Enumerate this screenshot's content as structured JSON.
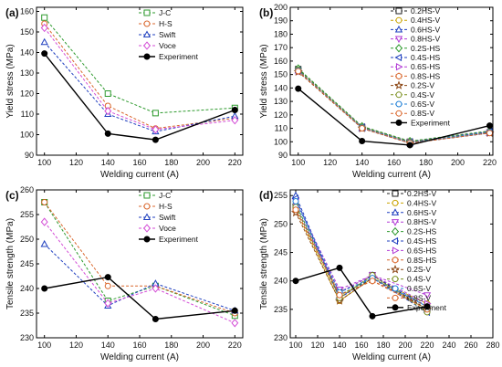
{
  "chart_data": [
    {
      "panel": "(a)",
      "type": "line",
      "xlabel": "Welding current (A)",
      "ylabel": "Yield stress (MPa)",
      "xlim": [
        95,
        225
      ],
      "ylim": [
        90,
        162
      ],
      "xticks": [
        100,
        120,
        140,
        160,
        180,
        200,
        220
      ],
      "yticks": [
        90,
        100,
        110,
        120,
        130,
        140,
        150,
        160
      ],
      "legend_position": "top-right",
      "series": [
        {
          "name": "J-C",
          "color": "#2e9a2e",
          "marker": "square",
          "dashed": true,
          "x": [
            100,
            140,
            170,
            220
          ],
          "values": [
            157,
            120,
            110.5,
            113
          ]
        },
        {
          "name": "H-S",
          "color": "#d9662b",
          "marker": "circle",
          "dashed": true,
          "x": [
            100,
            140,
            170,
            220
          ],
          "values": [
            154,
            114,
            103,
            108
          ]
        },
        {
          "name": "Swift",
          "color": "#1f3fbf",
          "marker": "triangle",
          "dashed": true,
          "x": [
            100,
            140,
            170,
            220
          ],
          "values": [
            145,
            110,
            101.5,
            109
          ]
        },
        {
          "name": "Voce",
          "color": "#d34bd6",
          "marker": "diamond",
          "dashed": true,
          "x": [
            100,
            140,
            170,
            220
          ],
          "values": [
            152,
            111.5,
            102.5,
            107
          ]
        },
        {
          "name": "Experiment",
          "color": "#000000",
          "marker": "filled-circle",
          "dashed": false,
          "x": [
            100,
            140,
            170,
            220
          ],
          "values": [
            139.5,
            100.5,
            97.5,
            112
          ]
        }
      ]
    },
    {
      "panel": "(b)",
      "type": "line",
      "xlabel": "Welding current (A)",
      "ylabel": "Yield stress (MPa)",
      "xlim": [
        95,
        222
      ],
      "ylim": [
        90,
        200
      ],
      "xticks": [
        100,
        120,
        140,
        160,
        180,
        200,
        220
      ],
      "yticks": [
        90,
        100,
        110,
        120,
        130,
        140,
        150,
        160,
        170,
        180,
        190,
        200
      ],
      "legend_position": "top-right",
      "series": [
        {
          "name": "0.2HS-V",
          "color": "#222222",
          "marker": "square",
          "dashed": true,
          "x": [
            100,
            140,
            170,
            220
          ],
          "values": [
            154,
            111,
            100,
            107
          ]
        },
        {
          "name": "0.4HS-V",
          "color": "#c9a200",
          "marker": "circle",
          "dashed": true,
          "x": [
            100,
            140,
            170,
            220
          ],
          "values": [
            153.5,
            110.5,
            99.5,
            107.5
          ]
        },
        {
          "name": "0.6HS-V",
          "color": "#1f3fbf",
          "marker": "triangle",
          "dashed": true,
          "x": [
            100,
            140,
            170,
            220
          ],
          "values": [
            153,
            110,
            99,
            106.5
          ]
        },
        {
          "name": "0.8HS-V",
          "color": "#b23bd6",
          "marker": "triangle-down",
          "dashed": true,
          "x": [
            100,
            140,
            170,
            220
          ],
          "values": [
            152.5,
            110.5,
            99.5,
            107
          ]
        },
        {
          "name": "0.2S-HS",
          "color": "#2e9a2e",
          "marker": "diamond",
          "dashed": true,
          "x": [
            100,
            140,
            170,
            220
          ],
          "values": [
            154.5,
            111.5,
            100.5,
            108
          ]
        },
        {
          "name": "0.4S-HS",
          "color": "#1f3fbf",
          "marker": "triangle-left",
          "dashed": true,
          "x": [
            100,
            140,
            170,
            220
          ],
          "values": [
            153,
            111,
            100,
            107.5
          ]
        },
        {
          "name": "0.6S-HS",
          "color": "#b23bd6",
          "marker": "triangle-right",
          "dashed": true,
          "x": [
            100,
            140,
            170,
            220
          ],
          "values": [
            152.5,
            110,
            99.5,
            106.5
          ]
        },
        {
          "name": "0.8S-HS",
          "color": "#d9662b",
          "marker": "hexagon",
          "dashed": true,
          "x": [
            100,
            140,
            170,
            220
          ],
          "values": [
            153,
            110.5,
            99.5,
            107
          ]
        },
        {
          "name": "0.2S-V",
          "color": "#8b4513",
          "marker": "star",
          "dashed": true,
          "x": [
            100,
            140,
            170,
            220
          ],
          "values": [
            152,
            110,
            99,
            106.5
          ]
        },
        {
          "name": "0.4S-V",
          "color": "#7a8f1f",
          "marker": "circle",
          "dashed": true,
          "x": [
            100,
            140,
            170,
            220
          ],
          "values": [
            153.5,
            111,
            100,
            107
          ]
        },
        {
          "name": "0.6S-V",
          "color": "#1f7fd6",
          "marker": "circle",
          "dashed": true,
          "x": [
            100,
            140,
            170,
            220
          ],
          "values": [
            153,
            110.5,
            99.5,
            107
          ]
        },
        {
          "name": "0.8S-V",
          "color": "#d9662b",
          "marker": "circle",
          "dashed": true,
          "x": [
            100,
            140,
            170,
            220
          ],
          "values": [
            152.5,
            110,
            99,
            106.5
          ]
        },
        {
          "name": "Experiment",
          "color": "#000000",
          "marker": "filled-circle",
          "dashed": false,
          "x": [
            100,
            140,
            170,
            220
          ],
          "values": [
            139.5,
            100.5,
            97.5,
            112
          ]
        }
      ]
    },
    {
      "panel": "(c)",
      "type": "line",
      "xlabel": "Welding current (A)",
      "ylabel": "Tensile strength (MPa)",
      "xlim": [
        95,
        225
      ],
      "ylim": [
        230,
        260
      ],
      "xticks": [
        100,
        120,
        140,
        160,
        180,
        200,
        220
      ],
      "yticks": [
        230,
        235,
        240,
        245,
        250,
        255,
        260
      ],
      "legend_position": "top-right",
      "series": [
        {
          "name": "J-C",
          "color": "#2e9a2e",
          "marker": "square",
          "dashed": true,
          "x": [
            100,
            140,
            170,
            220
          ],
          "values": [
            257.5,
            237.5,
            240.5,
            234.5
          ]
        },
        {
          "name": "H-S",
          "color": "#d9662b",
          "marker": "circle",
          "dashed": true,
          "x": [
            100,
            140,
            170,
            220
          ],
          "values": [
            257.5,
            240.5,
            240.5,
            235
          ]
        },
        {
          "name": "Swift",
          "color": "#1f3fbf",
          "marker": "triangle",
          "dashed": true,
          "x": [
            100,
            140,
            170,
            220
          ],
          "values": [
            249,
            236.5,
            241,
            235.5
          ]
        },
        {
          "name": "Voce",
          "color": "#d34bd6",
          "marker": "diamond",
          "dashed": true,
          "x": [
            100,
            140,
            170,
            220
          ],
          "values": [
            253.5,
            237,
            240,
            233
          ]
        },
        {
          "name": "Experiment",
          "color": "#000000",
          "marker": "filled-circle",
          "dashed": false,
          "x": [
            100,
            140,
            170,
            220
          ],
          "values": [
            240,
            242.3,
            233.8,
            235.5
          ]
        }
      ]
    },
    {
      "panel": "(d)",
      "type": "line",
      "xlabel": "Welding current (A)",
      "ylabel": "Tensile strength (MPa)",
      "xlim": [
        95,
        280
      ],
      "ylim": [
        230,
        256
      ],
      "xticks": [
        100,
        120,
        140,
        160,
        180,
        200,
        220,
        240,
        260,
        280
      ],
      "yticks": [
        230,
        235,
        240,
        245,
        250,
        255
      ],
      "legend_position": "top-right",
      "series": [
        {
          "name": "0.2HS-V",
          "color": "#222222",
          "marker": "square",
          "dashed": true,
          "x": [
            100,
            140,
            170,
            220
          ],
          "values": [
            253,
            238,
            241,
            235
          ]
        },
        {
          "name": "0.4HS-V",
          "color": "#c9a200",
          "marker": "circle",
          "dashed": true,
          "x": [
            100,
            140,
            170,
            220
          ],
          "values": [
            252.5,
            236.5,
            240.5,
            236
          ]
        },
        {
          "name": "0.6HS-V",
          "color": "#1f3fbf",
          "marker": "triangle",
          "dashed": true,
          "x": [
            100,
            140,
            170,
            220
          ],
          "values": [
            255,
            237,
            241,
            235.5
          ]
        },
        {
          "name": "0.8HS-V",
          "color": "#b23bd6",
          "marker": "triangle-down",
          "dashed": true,
          "x": [
            100,
            140,
            170,
            220
          ],
          "values": [
            254,
            238.5,
            241,
            237.5
          ]
        },
        {
          "name": "0.2S-HS",
          "color": "#2e9a2e",
          "marker": "diamond",
          "dashed": true,
          "x": [
            100,
            140,
            170,
            220
          ],
          "values": [
            253.5,
            237.5,
            240.5,
            235
          ]
        },
        {
          "name": "0.4S-HS",
          "color": "#1f3fbf",
          "marker": "triangle-left",
          "dashed": true,
          "x": [
            100,
            140,
            170,
            220
          ],
          "values": [
            254.5,
            237,
            240.5,
            234.5
          ]
        },
        {
          "name": "0.6S-HS",
          "color": "#b23bd6",
          "marker": "triangle-right",
          "dashed": true,
          "x": [
            100,
            140,
            170,
            220
          ],
          "values": [
            253,
            238,
            241,
            236
          ]
        },
        {
          "name": "0.8S-HS",
          "color": "#d9662b",
          "marker": "hexagon",
          "dashed": true,
          "x": [
            100,
            140,
            170,
            220
          ],
          "values": [
            252.5,
            237.5,
            240,
            235.5
          ]
        },
        {
          "name": "0.2S-V",
          "color": "#8b4513",
          "marker": "star",
          "dashed": true,
          "x": [
            100,
            140,
            170,
            220
          ],
          "values": [
            252,
            236.5,
            240.5,
            235
          ]
        },
        {
          "name": "0.4S-V",
          "color": "#7a8f1f",
          "marker": "circle",
          "dashed": true,
          "x": [
            100,
            140,
            170,
            220
          ],
          "values": [
            253,
            237,
            241,
            234.5
          ]
        },
        {
          "name": "0.6S-V",
          "color": "#1f7fd6",
          "marker": "circle",
          "dashed": true,
          "x": [
            100,
            140,
            170,
            220
          ],
          "values": [
            254,
            238,
            240.5,
            235.5
          ]
        },
        {
          "name": "0.8S-V",
          "color": "#d9662b",
          "marker": "circle",
          "dashed": true,
          "x": [
            100,
            140,
            170,
            220
          ],
          "values": [
            252.5,
            237.5,
            240,
            235
          ]
        },
        {
          "name": "Experiment",
          "color": "#000000",
          "marker": "filled-circle",
          "dashed": false,
          "x": [
            100,
            140,
            170,
            220
          ],
          "values": [
            240,
            242.3,
            233.8,
            235.5
          ]
        }
      ]
    }
  ]
}
